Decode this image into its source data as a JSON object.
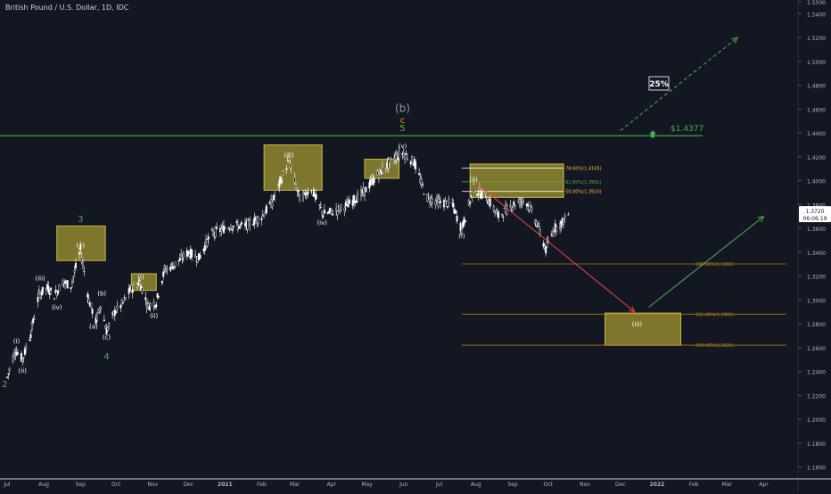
{
  "header": {
    "title": "British Pound / U.S. Dollar, 1D, IDC"
  },
  "chart_data": {
    "type": "candlestick",
    "symbol": "GBPUSD",
    "timeframe": "1D",
    "ylim": [
      1.15,
      1.55
    ],
    "y_ticks": [
      "1.5500",
      "1.5400",
      "1.5200",
      "1.5000",
      "1.4800",
      "1.4600",
      "1.4400",
      "1.4200",
      "1.4000",
      "1.3800",
      "1.3600",
      "1.3400",
      "1.3200",
      "1.3000",
      "1.2800",
      "1.2600",
      "1.2400",
      "1.2200",
      "1.2000",
      "1.1800",
      "1.1600"
    ],
    "x_ticks": [
      "Jul",
      "Aug",
      "Sep",
      "Oct",
      "Nov",
      "Dec",
      "2021",
      "Feb",
      "Mar",
      "Apr",
      "May",
      "Jun",
      "Jul",
      "Aug",
      "Sep",
      "Oct",
      "Nov",
      "Dec",
      "2022",
      "Feb",
      "Mar",
      "Apr"
    ],
    "current_price": {
      "price": "1.3720",
      "countdown": "06:06:19"
    },
    "resistance": {
      "price": 1.4377,
      "label": "$1.4377"
    },
    "projection_label": "25%",
    "colors": {
      "up": "#ffffff",
      "down": "#ffffff",
      "resistance": "#4caf50",
      "zone": "#a99b32",
      "fib": "#b8860b"
    },
    "price_path": [
      [
        "2020-07-01",
        1.235
      ],
      [
        "2020-07-08",
        1.258
      ],
      [
        "2020-07-14",
        1.25
      ],
      [
        "2020-07-21",
        1.272
      ],
      [
        "2020-07-28",
        1.305
      ],
      [
        "2020-08-04",
        1.31
      ],
      [
        "2020-08-10",
        1.304
      ],
      [
        "2020-08-17",
        1.315
      ],
      [
        "2020-08-24",
        1.312
      ],
      [
        "2020-09-01",
        1.342
      ],
      [
        "2020-09-08",
        1.3
      ],
      [
        "2020-09-14",
        1.282
      ],
      [
        "2020-09-18",
        1.296
      ],
      [
        "2020-09-23",
        1.274
      ],
      [
        "2020-09-30",
        1.29
      ],
      [
        "2020-10-06",
        1.296
      ],
      [
        "2020-10-13",
        1.308
      ],
      [
        "2020-10-21",
        1.315
      ],
      [
        "2020-10-28",
        1.295
      ],
      [
        "2020-11-04",
        1.298
      ],
      [
        "2020-11-11",
        1.325
      ],
      [
        "2020-11-20",
        1.33
      ],
      [
        "2020-12-01",
        1.34
      ],
      [
        "2020-12-10",
        1.335
      ],
      [
        "2020-12-20",
        1.355
      ],
      [
        "2021-01-05",
        1.362
      ],
      [
        "2021-01-18",
        1.362
      ],
      [
        "2021-02-01",
        1.37
      ],
      [
        "2021-02-10",
        1.382
      ],
      [
        "2021-02-24",
        1.417
      ],
      [
        "2021-03-05",
        1.385
      ],
      [
        "2021-03-15",
        1.393
      ],
      [
        "2021-03-25",
        1.372
      ],
      [
        "2021-04-06",
        1.375
      ],
      [
        "2021-04-15",
        1.38
      ],
      [
        "2021-04-28",
        1.39
      ],
      [
        "2021-05-10",
        1.405
      ],
      [
        "2021-05-25",
        1.42
      ],
      [
        "2021-06-01",
        1.423
      ],
      [
        "2021-06-10",
        1.415
      ],
      [
        "2021-06-20",
        1.386
      ],
      [
        "2021-07-01",
        1.382
      ],
      [
        "2021-07-12",
        1.38
      ],
      [
        "2021-07-20",
        1.359
      ],
      [
        "2021-07-30",
        1.393
      ],
      [
        "2021-08-10",
        1.386
      ],
      [
        "2021-08-20",
        1.37
      ],
      [
        "2021-09-01",
        1.38
      ],
      [
        "2021-09-12",
        1.384
      ],
      [
        "2021-09-22",
        1.363
      ],
      [
        "2021-09-29",
        1.342
      ],
      [
        "2021-10-06",
        1.36
      ],
      [
        "2021-10-13",
        1.365
      ],
      [
        "2021-10-18",
        1.372
      ]
    ]
  },
  "waves": [
    {
      "label": "2",
      "date": "2020-06-29",
      "price": 1.233,
      "color": "#4caf50",
      "pos": "below"
    },
    {
      "label": "(i)",
      "date": "2020-07-09",
      "price": 1.262,
      "color": "#ffffff",
      "pos": "above"
    },
    {
      "label": "(ii)",
      "date": "2020-07-14",
      "price": 1.245,
      "color": "#ffffff",
      "pos": "below"
    },
    {
      "label": "(iii)",
      "date": "2020-07-29",
      "price": 1.315,
      "color": "#ffffff",
      "pos": "above"
    },
    {
      "label": "(iv)",
      "date": "2020-08-12",
      "price": 1.298,
      "color": "#ffffff",
      "pos": "below"
    },
    {
      "label": "3",
      "date": "2020-09-01",
      "price": 1.364,
      "color": "#4caf50",
      "pos": "above"
    },
    {
      "label": "(v)",
      "date": "2020-09-01",
      "price": 1.344,
      "color": "#ffffff",
      "pos": "none"
    },
    {
      "label": "(b)",
      "date": "2020-09-19",
      "price": 1.302,
      "color": "#ffffff",
      "pos": "above"
    },
    {
      "label": "(a)",
      "date": "2020-09-12",
      "price": 1.282,
      "color": "#ffffff",
      "pos": "below"
    },
    {
      "label": "(c)",
      "date": "2020-09-23",
      "price": 1.273,
      "color": "#ffffff",
      "pos": "below"
    },
    {
      "label": "4",
      "date": "2020-09-23",
      "price": 1.256,
      "color": "#4caf50",
      "pos": "below"
    },
    {
      "label": "(i)",
      "date": "2020-10-22",
      "price": 1.316,
      "color": "#ffffff",
      "pos": "above"
    },
    {
      "label": "(ii)",
      "date": "2020-11-02",
      "price": 1.291,
      "color": "#ffffff",
      "pos": "below"
    },
    {
      "label": "(iii)",
      "date": "2021-02-24",
      "price": 1.418,
      "color": "#ffffff",
      "pos": "above"
    },
    {
      "label": "(iv)",
      "date": "2021-03-24",
      "price": 1.369,
      "color": "#ffffff",
      "pos": "below"
    },
    {
      "label": "(v)",
      "date": "2021-05-31",
      "price": 1.426,
      "color": "#ffffff",
      "pos": "above"
    },
    {
      "label": "5",
      "date": "2021-05-31",
      "price": 1.44,
      "color": "#4caf50",
      "pos": "above"
    },
    {
      "label": "c",
      "date": "2021-05-31",
      "price": 1.447,
      "color": "#ff9800",
      "pos": "above"
    },
    {
      "label": "(b)",
      "date": "2021-05-31",
      "price": 1.456,
      "color": "#9598a1",
      "pos": "above"
    },
    {
      "label": "(i)",
      "date": "2021-07-20",
      "price": 1.358,
      "color": "#ffffff",
      "pos": "below"
    },
    {
      "label": "(ii)",
      "date": "2021-07-30",
      "price": 1.398,
      "color": "#ffffff",
      "pos": "above"
    },
    {
      "label": "(iii)",
      "date": "2021-12-15",
      "price": 1.278,
      "color": "#ffffff",
      "pos": "none"
    }
  ],
  "zones": [
    {
      "from": "2020-08-12",
      "to": "2020-09-22",
      "top": 1.362,
      "bottom": 1.333
    },
    {
      "from": "2020-10-14",
      "to": "2020-11-04",
      "top": 1.322,
      "bottom": 1.308
    },
    {
      "from": "2021-02-03",
      "to": "2021-03-24",
      "top": 1.43,
      "bottom": 1.392
    },
    {
      "from": "2021-04-29",
      "to": "2021-05-28",
      "top": 1.418,
      "bottom": 1.402
    },
    {
      "from": "2021-07-27",
      "to": "2021-10-14",
      "top": 1.414,
      "bottom": 1.386
    },
    {
      "from": "2021-11-18",
      "to": "2022-01-21",
      "top": 1.289,
      "bottom": 1.262
    }
  ],
  "fibs": [
    {
      "label": "78.60%(1.4105)",
      "price": 1.4105,
      "from": "2021-07-20",
      "to": "2021-10-14",
      "color": "#ffffff"
    },
    {
      "label": "61.80%(1.3991)",
      "price": 1.3991,
      "from": "2021-07-20",
      "to": "2021-10-14",
      "color": "#4caf50"
    },
    {
      "label": "50.00%(1.3910)",
      "price": 1.391,
      "from": "2021-07-20",
      "to": "2021-10-14",
      "color": "#ffffff"
    },
    {
      "label": "100.00%(1.3302)",
      "price": 1.3302,
      "from": "2021-07-20",
      "to": "2022-04-20",
      "color": "#b8860b"
    },
    {
      "label": "161.80%(1.2881)",
      "price": 1.2881,
      "from": "2021-07-20",
      "to": "2022-04-20",
      "color": "#b8860b"
    },
    {
      "label": "200.00%(1.2621)",
      "price": 1.2621,
      "from": "2021-07-20",
      "to": "2022-04-20",
      "color": "#b8860b"
    }
  ],
  "arrows": [
    {
      "name": "red-projection-arrow",
      "from": [
        "2021-08-01",
        1.398
      ],
      "to": [
        "2021-12-13",
        1.29
      ],
      "color": "#f44336",
      "dashed": false
    },
    {
      "name": "green-projection-arrow",
      "from": [
        "2021-12-25",
        1.294
      ],
      "to": [
        "2022-04-01",
        1.37
      ],
      "color": "#4caf50",
      "dashed": false
    },
    {
      "name": "green-dashed-arrow",
      "from": [
        "2021-12-01",
        1.442
      ],
      "to": [
        "2022-03-10",
        1.52
      ],
      "color": "#4caf50",
      "dashed": true
    }
  ]
}
